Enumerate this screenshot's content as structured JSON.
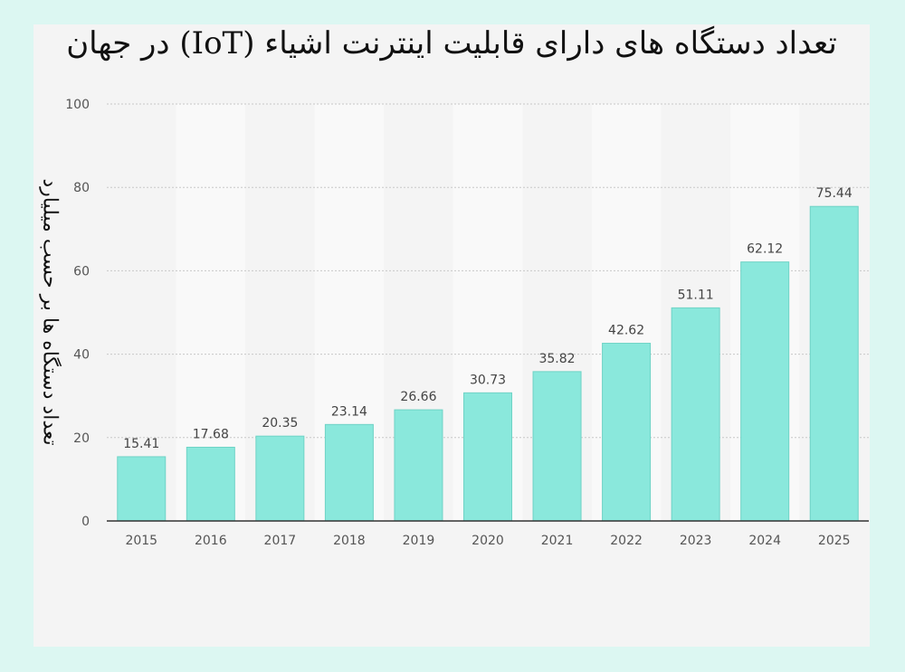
{
  "chart_data": {
    "type": "bar",
    "title": "تعداد دستگاه های دارای قابلیت اینترنت اشیاء (IoT) در جهان",
    "xlabel": "",
    "ylabel": "تعداد دستگاه ها بر حسب میلیارد",
    "categories": [
      "2015",
      "2016",
      "2017",
      "2018",
      "2019",
      "2020",
      "2021",
      "2022",
      "2023",
      "2024",
      "2025"
    ],
    "values": [
      15.41,
      17.68,
      20.35,
      23.14,
      26.66,
      30.73,
      35.82,
      42.62,
      51.11,
      62.12,
      75.44
    ],
    "value_labels": [
      "15.41",
      "17.68",
      "20.35",
      "23.14",
      "26.66",
      "30.73",
      "35.82",
      "42.62",
      "51.11",
      "62.12",
      "75.44"
    ],
    "ylim": [
      0,
      100
    ],
    "yticks": [
      "0",
      "20",
      "40",
      "60",
      "80",
      "100"
    ],
    "grid": true,
    "legend": "none",
    "colors": {
      "bar": "#8ae8dc",
      "bar_edge": "#6fd3c6",
      "alt_band": "#f9f9f9",
      "grid": "#c8c8c8",
      "axis": "#333333"
    }
  }
}
